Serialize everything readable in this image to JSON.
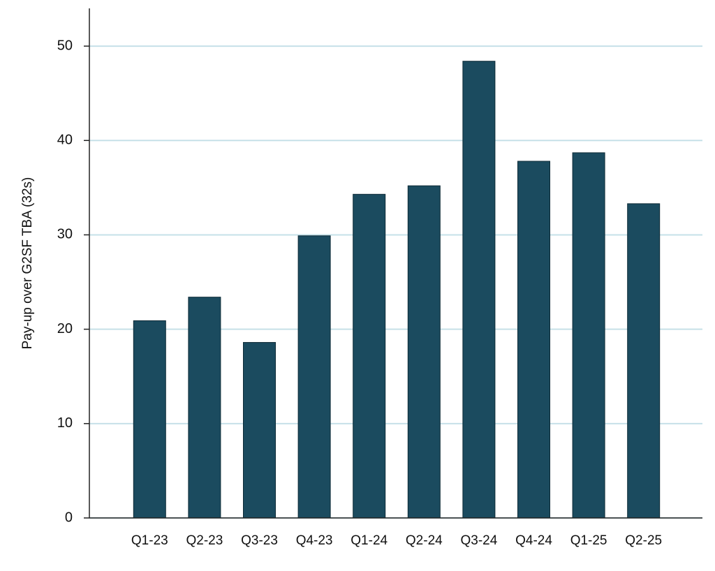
{
  "chart_data": {
    "type": "bar",
    "y_label": "Pay-up over G2SF TBA (32s)",
    "categories": [
      "Q1-23",
      "Q2-23",
      "Q3-23",
      "Q4-23",
      "Q1-24",
      "Q2-24",
      "Q3-24",
      "Q4-24",
      "Q1-25",
      "Q2-25"
    ],
    "values": [
      20.9,
      23.4,
      18.6,
      29.9,
      34.3,
      35.2,
      48.4,
      37.8,
      38.7,
      33.3
    ],
    "color": "#1b4b5f",
    "ylim": [
      0,
      54
    ],
    "yticks": [
      0,
      10,
      20,
      30,
      40,
      50
    ],
    "grid": true
  }
}
